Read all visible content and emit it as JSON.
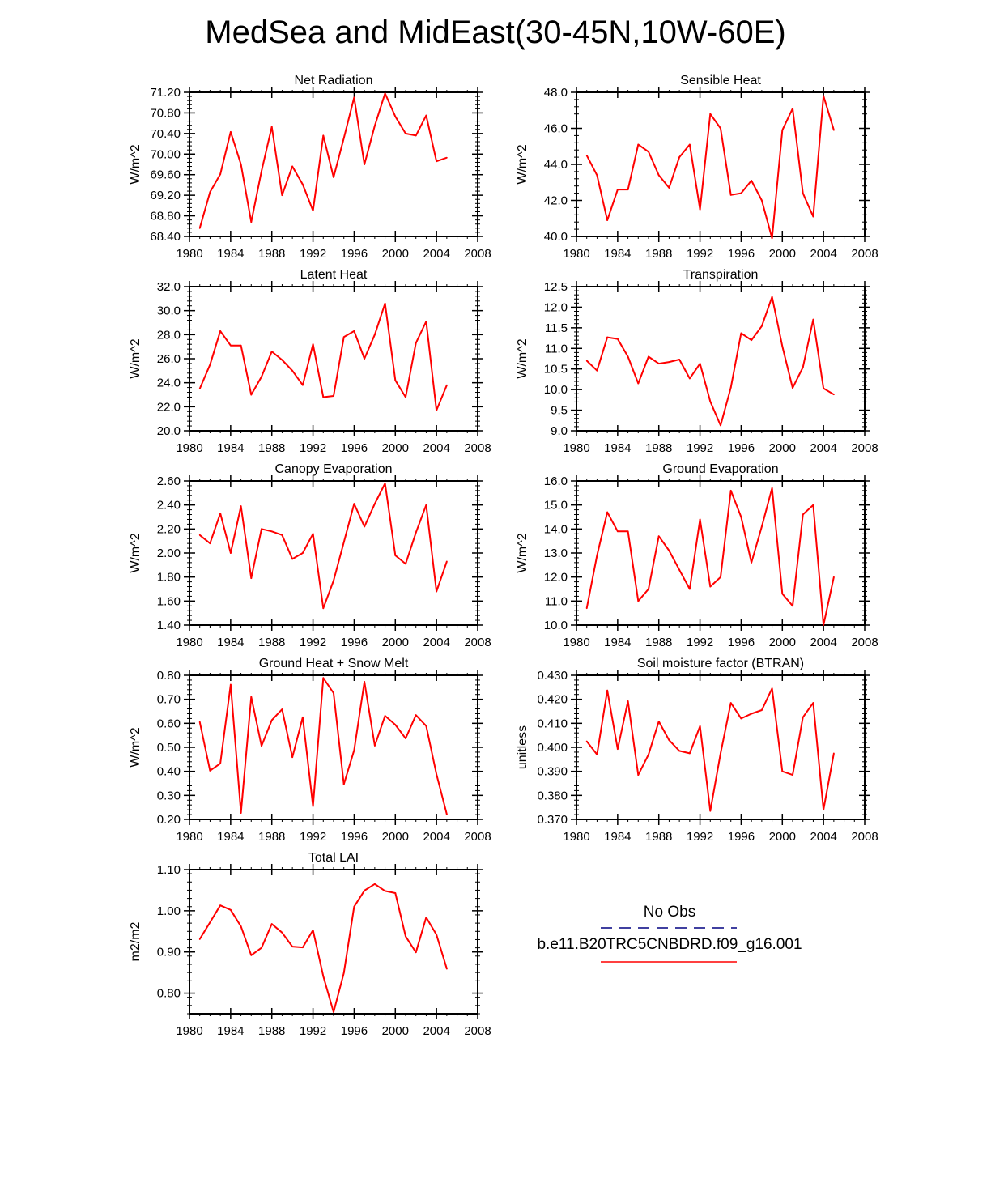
{
  "figure_title": "MedSea and MidEast(30-45N,10W-60E)",
  "colors": {
    "model": "#ff0000",
    "obs": "#000080",
    "axis": "#000000"
  },
  "legend": {
    "obs_label": "No Obs",
    "model_label": "b.e11.B20TRC5CNBDRD.f09_g16.001"
  },
  "chart_data": [
    {
      "type": "line",
      "title": "Net Radiation",
      "ylabel": "W/m^2",
      "xlim": [
        1980,
        2008
      ],
      "ylim": [
        68.4,
        71.2
      ],
      "xticks": [
        1980,
        1984,
        1988,
        1992,
        1996,
        2000,
        2004,
        2008
      ],
      "xtick_labels": [
        "1980",
        "1984",
        "1988",
        "1992",
        "1996",
        "2000",
        "2004",
        "2008"
      ],
      "yticks": [
        68.4,
        68.8,
        69.2,
        69.6,
        70.0,
        70.4,
        70.8,
        71.2
      ],
      "ytick_labels": [
        "68.40",
        "68.80",
        "69.20",
        "69.60",
        "70.00",
        "70.40",
        "70.80",
        "71.20"
      ],
      "x": [
        1981,
        1982,
        1983,
        1984,
        1985,
        1986,
        1987,
        1988,
        1989,
        1990,
        1991,
        1992,
        1993,
        1994,
        1995,
        1996,
        1997,
        1998,
        1999,
        2000,
        2001,
        2002,
        2003,
        2004,
        2005
      ],
      "series": [
        {
          "name": "b.e11.B20TRC5CNBDRD.f09_g16.001",
          "values": [
            68.56,
            69.26,
            69.61,
            70.43,
            69.8,
            68.68,
            69.67,
            70.53,
            69.2,
            69.76,
            69.41,
            68.9,
            70.36,
            69.55,
            70.31,
            71.1,
            69.8,
            70.55,
            71.18,
            70.73,
            70.4,
            70.36,
            70.75,
            69.86,
            69.93
          ]
        }
      ]
    },
    {
      "type": "line",
      "title": "Sensible Heat",
      "ylabel": "W/m^2",
      "xlim": [
        1980,
        2008
      ],
      "ylim": [
        40.0,
        48.0
      ],
      "xticks": [
        1980,
        1984,
        1988,
        1992,
        1996,
        2000,
        2004,
        2008
      ],
      "xtick_labels": [
        "1980",
        "1984",
        "1988",
        "1992",
        "1996",
        "2000",
        "2004",
        "2008"
      ],
      "yticks": [
        40.0,
        42.0,
        44.0,
        46.0,
        48.0
      ],
      "ytick_labels": [
        "40.0",
        "42.0",
        "44.0",
        "46.0",
        "48.0"
      ],
      "x": [
        1981,
        1982,
        1983,
        1984,
        1985,
        1986,
        1987,
        1988,
        1989,
        1990,
        1991,
        1992,
        1993,
        1994,
        1995,
        1996,
        1997,
        1998,
        1999,
        2000,
        2001,
        2002,
        2003,
        2004,
        2005
      ],
      "series": [
        {
          "name": "b.e11.B20TRC5CNBDRD.f09_g16.001",
          "values": [
            44.5,
            43.4,
            40.9,
            42.6,
            42.6,
            45.1,
            44.7,
            43.4,
            42.7,
            44.4,
            45.1,
            41.5,
            46.8,
            46.0,
            42.3,
            42.4,
            43.1,
            42.0,
            39.9,
            45.9,
            47.1,
            42.4,
            41.1,
            47.8,
            45.9
          ]
        }
      ]
    },
    {
      "type": "line",
      "title": "Latent Heat",
      "ylabel": "W/m^2",
      "xlim": [
        1980,
        2008
      ],
      "ylim": [
        20.0,
        32.0
      ],
      "xticks": [
        1980,
        1984,
        1988,
        1992,
        1996,
        2000,
        2004,
        2008
      ],
      "xtick_labels": [
        "1980",
        "1984",
        "1988",
        "1992",
        "1996",
        "2000",
        "2004",
        "2008"
      ],
      "yticks": [
        20.0,
        22.0,
        24.0,
        26.0,
        28.0,
        30.0,
        32.0
      ],
      "ytick_labels": [
        "20.0",
        "22.0",
        "24.0",
        "26.0",
        "28.0",
        "30.0",
        "32.0"
      ],
      "x": [
        1981,
        1982,
        1983,
        1984,
        1985,
        1986,
        1987,
        1988,
        1989,
        1990,
        1991,
        1992,
        1993,
        1994,
        1995,
        1996,
        1997,
        1998,
        1999,
        2000,
        2001,
        2002,
        2003,
        2004,
        2005
      ],
      "series": [
        {
          "name": "b.e11.B20TRC5CNBDRD.f09_g16.001",
          "values": [
            23.5,
            25.5,
            28.3,
            27.1,
            27.1,
            23.0,
            24.5,
            26.6,
            25.9,
            25.0,
            23.8,
            27.2,
            22.8,
            22.9,
            27.8,
            28.3,
            26.0,
            28.0,
            30.6,
            24.2,
            22.8,
            27.3,
            29.1,
            21.7,
            23.8
          ]
        }
      ]
    },
    {
      "type": "line",
      "title": "Transpiration",
      "ylabel": "W/m^2",
      "xlim": [
        1980,
        2008
      ],
      "ylim": [
        9.0,
        12.5
      ],
      "xticks": [
        1980,
        1984,
        1988,
        1992,
        1996,
        2000,
        2004,
        2008
      ],
      "xtick_labels": [
        "1980",
        "1984",
        "1988",
        "1992",
        "1996",
        "2000",
        "2004",
        "2008"
      ],
      "yticks": [
        9.0,
        9.5,
        10.0,
        10.5,
        11.0,
        11.5,
        12.0,
        12.5
      ],
      "ytick_labels": [
        "9.0",
        "9.5",
        "10.0",
        "10.5",
        "11.0",
        "11.5",
        "12.0",
        "12.5"
      ],
      "x": [
        1981,
        1982,
        1983,
        1984,
        1985,
        1986,
        1987,
        1988,
        1989,
        1990,
        1991,
        1992,
        1993,
        1994,
        1995,
        1996,
        1997,
        1998,
        1999,
        2000,
        2001,
        2002,
        2003,
        2004,
        2005
      ],
      "series": [
        {
          "name": "b.e11.B20TRC5CNBDRD.f09_g16.001",
          "values": [
            10.7,
            10.46,
            11.27,
            11.23,
            10.8,
            10.15,
            10.8,
            10.63,
            10.67,
            10.73,
            10.27,
            10.63,
            9.71,
            9.13,
            10.05,
            11.37,
            11.2,
            11.54,
            12.25,
            11.05,
            10.04,
            10.54,
            11.7,
            10.03,
            9.88
          ]
        }
      ]
    },
    {
      "type": "line",
      "title": "Canopy Evaporation",
      "ylabel": "W/m^2",
      "xlim": [
        1980,
        2008
      ],
      "ylim": [
        1.4,
        2.6
      ],
      "xticks": [
        1980,
        1984,
        1988,
        1992,
        1996,
        2000,
        2004,
        2008
      ],
      "xtick_labels": [
        "1980",
        "1984",
        "1988",
        "1992",
        "1996",
        "2000",
        "2004",
        "2008"
      ],
      "yticks": [
        1.4,
        1.6,
        1.8,
        2.0,
        2.2,
        2.4,
        2.6
      ],
      "ytick_labels": [
        "1.40",
        "1.60",
        "1.80",
        "2.00",
        "2.20",
        "2.40",
        "2.60"
      ],
      "x": [
        1981,
        1982,
        1983,
        1984,
        1985,
        1986,
        1987,
        1988,
        1989,
        1990,
        1991,
        1992,
        1993,
        1994,
        1995,
        1996,
        1997,
        1998,
        1999,
        2000,
        2001,
        2002,
        2003,
        2004,
        2005
      ],
      "series": [
        {
          "name": "b.e11.B20TRC5CNBDRD.f09_g16.001",
          "values": [
            2.15,
            2.08,
            2.33,
            2.0,
            2.39,
            1.79,
            2.2,
            2.18,
            2.15,
            1.95,
            2.0,
            2.16,
            1.54,
            1.77,
            2.09,
            2.41,
            2.22,
            2.41,
            2.58,
            1.98,
            1.91,
            2.17,
            2.4,
            1.68,
            1.93
          ]
        }
      ]
    },
    {
      "type": "line",
      "title": "Ground Evaporation",
      "ylabel": "W/m^2",
      "xlim": [
        1980,
        2008
      ],
      "ylim": [
        10.0,
        16.0
      ],
      "xticks": [
        1980,
        1984,
        1988,
        1992,
        1996,
        2000,
        2004,
        2008
      ],
      "xtick_labels": [
        "1980",
        "1984",
        "1988",
        "1992",
        "1996",
        "2000",
        "2004",
        "2008"
      ],
      "yticks": [
        10.0,
        11.0,
        12.0,
        13.0,
        14.0,
        15.0,
        16.0
      ],
      "ytick_labels": [
        "10.0",
        "11.0",
        "12.0",
        "13.0",
        "14.0",
        "15.0",
        "16.0"
      ],
      "x": [
        1981,
        1982,
        1983,
        1984,
        1985,
        1986,
        1987,
        1988,
        1989,
        1990,
        1991,
        1992,
        1993,
        1994,
        1995,
        1996,
        1997,
        1998,
        1999,
        2000,
        2001,
        2002,
        2003,
        2004,
        2005
      ],
      "series": [
        {
          "name": "b.e11.B20TRC5CNBDRD.f09_g16.001",
          "values": [
            10.7,
            12.9,
            14.7,
            13.9,
            13.9,
            11.0,
            11.5,
            13.7,
            13.1,
            12.3,
            11.5,
            14.4,
            11.6,
            12.0,
            15.6,
            14.5,
            12.6,
            14.1,
            15.7,
            11.3,
            10.8,
            14.6,
            15.0,
            10.0,
            12.0
          ]
        }
      ]
    },
    {
      "type": "line",
      "title": "Ground Heat + Snow Melt",
      "ylabel": "W/m^2",
      "xlim": [
        1980,
        2008
      ],
      "ylim": [
        0.2,
        0.8
      ],
      "xticks": [
        1980,
        1984,
        1988,
        1992,
        1996,
        2000,
        2004,
        2008
      ],
      "xtick_labels": [
        "1980",
        "1984",
        "1988",
        "1992",
        "1996",
        "2000",
        "2004",
        "2008"
      ],
      "yticks": [
        0.2,
        0.3,
        0.4,
        0.5,
        0.6,
        0.7,
        0.8
      ],
      "ytick_labels": [
        "0.20",
        "0.30",
        "0.40",
        "0.50",
        "0.60",
        "0.70",
        "0.80"
      ],
      "x": [
        1981,
        1982,
        1983,
        1984,
        1985,
        1986,
        1987,
        1988,
        1989,
        1990,
        1991,
        1992,
        1993,
        1994,
        1995,
        1996,
        1997,
        1998,
        1999,
        2000,
        2001,
        2002,
        2003,
        2004,
        2005
      ],
      "series": [
        {
          "name": "b.e11.B20TRC5CNBDRD.f09_g16.001",
          "values": [
            0.606,
            0.403,
            0.433,
            0.761,
            0.227,
            0.71,
            0.506,
            0.613,
            0.658,
            0.459,
            0.625,
            0.255,
            0.789,
            0.726,
            0.346,
            0.488,
            0.773,
            0.507,
            0.631,
            0.594,
            0.537,
            0.634,
            0.589,
            0.388,
            0.221
          ]
        }
      ]
    },
    {
      "type": "line",
      "title": "Soil moisture factor (BTRAN)",
      "ylabel": "unitless",
      "xlim": [
        1980,
        2008
      ],
      "ylim": [
        0.37,
        0.43
      ],
      "xticks": [
        1980,
        1984,
        1988,
        1992,
        1996,
        2000,
        2004,
        2008
      ],
      "xtick_labels": [
        "1980",
        "1984",
        "1988",
        "1992",
        "1996",
        "2000",
        "2004",
        "2008"
      ],
      "yticks": [
        0.37,
        0.38,
        0.39,
        0.4,
        0.41,
        0.42,
        0.43
      ],
      "ytick_labels": [
        "0.370",
        "0.380",
        "0.390",
        "0.400",
        "0.410",
        "0.420",
        "0.430"
      ],
      "x": [
        1981,
        1982,
        1983,
        1984,
        1985,
        1986,
        1987,
        1988,
        1989,
        1990,
        1991,
        1992,
        1993,
        1994,
        1995,
        1996,
        1997,
        1998,
        1999,
        2000,
        2001,
        2002,
        2003,
        2004,
        2005
      ],
      "series": [
        {
          "name": "b.e11.B20TRC5CNBDRD.f09_g16.001",
          "values": [
            0.4025,
            0.397,
            0.4237,
            0.3993,
            0.4192,
            0.3885,
            0.397,
            0.4108,
            0.403,
            0.3985,
            0.3975,
            0.4088,
            0.3735,
            0.3975,
            0.4185,
            0.412,
            0.414,
            0.4155,
            0.4245,
            0.39,
            0.3885,
            0.4125,
            0.4185,
            0.374,
            0.3975
          ]
        }
      ]
    },
    {
      "type": "line",
      "title": "Total LAI",
      "ylabel": "m2/m2",
      "xlim": [
        1980,
        2008
      ],
      "ylim": [
        0.75,
        1.1
      ],
      "xticks": [
        1980,
        1984,
        1988,
        1992,
        1996,
        2000,
        2004,
        2008
      ],
      "xtick_labels": [
        "1980",
        "1984",
        "1988",
        "1992",
        "1996",
        "2000",
        "2004",
        "2008"
      ],
      "yticks": [
        0.8,
        0.9,
        1.0,
        1.1
      ],
      "ytick_labels": [
        "0.80",
        "0.90",
        "1.00",
        "1.10"
      ],
      "x": [
        1981,
        1982,
        1983,
        1984,
        1985,
        1986,
        1987,
        1988,
        1989,
        1990,
        1991,
        1992,
        1993,
        1994,
        1995,
        1996,
        1997,
        1998,
        1999,
        2000,
        2001,
        2002,
        2003,
        2004,
        2005
      ],
      "series": [
        {
          "name": "b.e11.B20TRC5CNBDRD.f09_g16.001",
          "values": [
            0.931,
            0.972,
            1.013,
            1.002,
            0.962,
            0.892,
            0.91,
            0.968,
            0.947,
            0.913,
            0.911,
            0.953,
            0.841,
            0.754,
            0.849,
            1.01,
            1.049,
            1.065,
            1.048,
            1.043,
            0.938,
            0.899,
            0.984,
            0.942,
            0.859
          ]
        }
      ]
    }
  ]
}
